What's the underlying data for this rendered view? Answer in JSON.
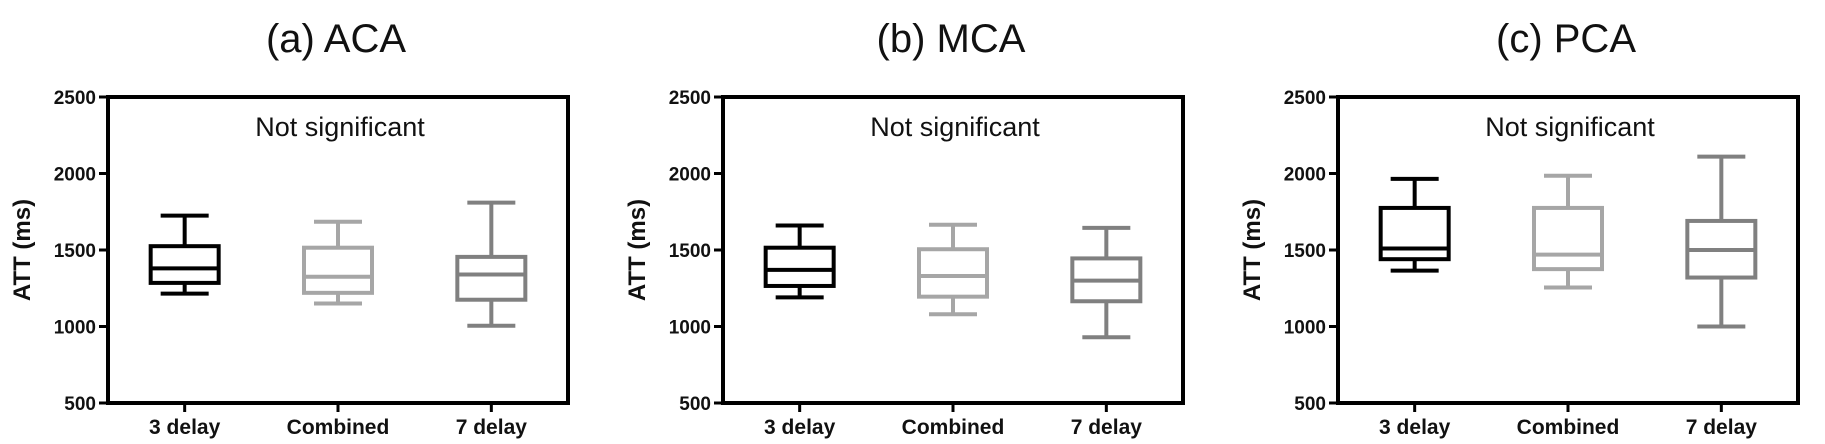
{
  "chart_data": [
    {
      "type": "box",
      "title": "(a) ACA",
      "ylabel": "ATT (ms)",
      "ylim": [
        500,
        2500
      ],
      "yticks": [
        500,
        1000,
        1500,
        2000,
        2500
      ],
      "annotation": "Not significant",
      "categories": [
        "3 delay",
        "Combined",
        "7 delay"
      ],
      "colors": [
        "#000000",
        "#a6a6a6",
        "#808080"
      ],
      "boxes": [
        {
          "min": 1215,
          "q1": 1285,
          "median": 1380,
          "q3": 1525,
          "max": 1725
        },
        {
          "min": 1150,
          "q1": 1220,
          "median": 1325,
          "q3": 1515,
          "max": 1685
        },
        {
          "min": 1005,
          "q1": 1175,
          "median": 1340,
          "q3": 1455,
          "max": 1810
        }
      ]
    },
    {
      "type": "box",
      "title": "(b) MCA",
      "ylabel": "ATT (ms)",
      "ylim": [
        500,
        2500
      ],
      "yticks": [
        500,
        1000,
        1500,
        2000,
        2500
      ],
      "annotation": "Not significant",
      "categories": [
        "3 delay",
        "Combined",
        "7 delay"
      ],
      "colors": [
        "#000000",
        "#a6a6a6",
        "#808080"
      ],
      "boxes": [
        {
          "min": 1190,
          "q1": 1265,
          "median": 1370,
          "q3": 1515,
          "max": 1660
        },
        {
          "min": 1080,
          "q1": 1195,
          "median": 1330,
          "q3": 1505,
          "max": 1665
        },
        {
          "min": 930,
          "q1": 1165,
          "median": 1300,
          "q3": 1445,
          "max": 1645
        }
      ]
    },
    {
      "type": "box",
      "title": "(c) PCA",
      "ylabel": "ATT (ms)",
      "ylim": [
        500,
        2500
      ],
      "yticks": [
        500,
        1000,
        1500,
        2000,
        2500
      ],
      "annotation": "Not significant",
      "categories": [
        "3 delay",
        "Combined",
        "7 delay"
      ],
      "colors": [
        "#000000",
        "#a6a6a6",
        "#808080"
      ],
      "boxes": [
        {
          "min": 1365,
          "q1": 1440,
          "median": 1510,
          "q3": 1775,
          "max": 1965
        },
        {
          "min": 1255,
          "q1": 1375,
          "median": 1470,
          "q3": 1775,
          "max": 1985
        },
        {
          "min": 1000,
          "q1": 1320,
          "median": 1500,
          "q3": 1690,
          "max": 2110
        }
      ]
    }
  ]
}
